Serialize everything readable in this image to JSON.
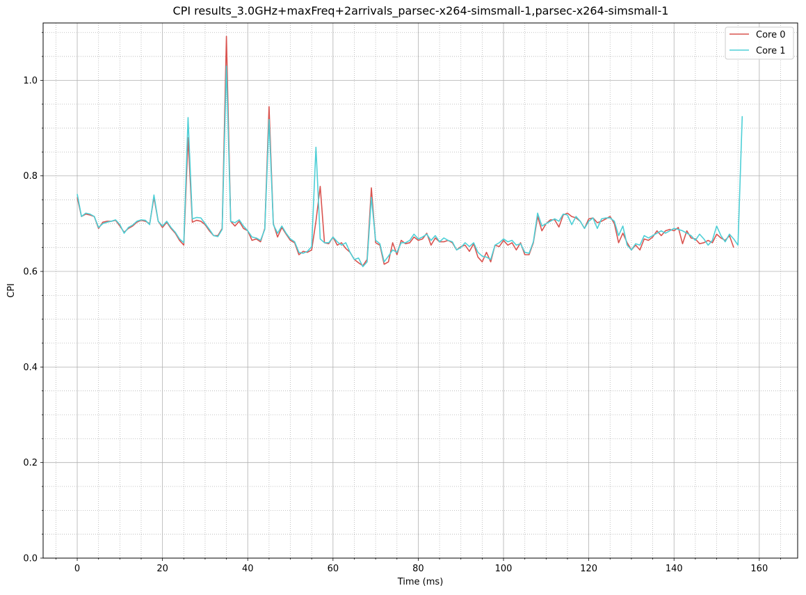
{
  "chart_data": {
    "type": "line",
    "title": "CPI results_3.0GHz+maxFreq+2arrivals_parsec-x264-simsmall-1,parsec-x264-simsmall-1",
    "xlabel": "Time (ms)",
    "ylabel": "CPI",
    "xlim": [
      -8,
      169
    ],
    "ylim": [
      0.0,
      1.12
    ],
    "x_ticks": [
      0,
      20,
      40,
      60,
      80,
      100,
      120,
      140,
      160
    ],
    "x_tick_labels": [
      "0",
      "20",
      "40",
      "60",
      "80",
      "100",
      "120",
      "140",
      "160"
    ],
    "x_minor_step": 5,
    "y_ticks": [
      0.0,
      0.2,
      0.4,
      0.6,
      0.8,
      1.0
    ],
    "y_tick_labels": [
      "0.0",
      "0.2",
      "0.4",
      "0.6",
      "0.8",
      "1.0"
    ],
    "y_minor_step": 0.05,
    "grid": true,
    "legend_position": "top-right",
    "series": [
      {
        "name": "Core 0",
        "color": "#d9534f",
        "x_start": 0,
        "x_step": 1,
        "values": [
          0.755,
          0.715,
          0.72,
          0.718,
          0.715,
          0.69,
          0.703,
          0.705,
          0.705,
          0.707,
          0.695,
          0.682,
          0.69,
          0.695,
          0.703,
          0.707,
          0.705,
          0.7,
          0.755,
          0.705,
          0.692,
          0.703,
          0.69,
          0.68,
          0.665,
          0.655,
          0.88,
          0.703,
          0.707,
          0.705,
          0.698,
          0.685,
          0.675,
          0.675,
          0.69,
          1.092,
          0.705,
          0.695,
          0.705,
          0.69,
          0.685,
          0.665,
          0.668,
          0.662,
          0.69,
          0.945,
          0.7,
          0.672,
          0.692,
          0.678,
          0.665,
          0.66,
          0.635,
          0.642,
          0.64,
          0.645,
          0.705,
          0.778,
          0.66,
          0.658,
          0.672,
          0.655,
          0.66,
          0.648,
          0.64,
          0.625,
          0.618,
          0.612,
          0.625,
          0.775,
          0.66,
          0.655,
          0.615,
          0.62,
          0.66,
          0.635,
          0.665,
          0.658,
          0.66,
          0.672,
          0.665,
          0.668,
          0.68,
          0.655,
          0.67,
          0.662,
          0.662,
          0.665,
          0.66,
          0.645,
          0.652,
          0.655,
          0.642,
          0.658,
          0.63,
          0.62,
          0.64,
          0.62,
          0.655,
          0.652,
          0.665,
          0.655,
          0.66,
          0.645,
          0.66,
          0.635,
          0.635,
          0.66,
          0.715,
          0.685,
          0.7,
          0.708,
          0.708,
          0.693,
          0.718,
          0.722,
          0.715,
          0.712,
          0.705,
          0.69,
          0.71,
          0.712,
          0.702,
          0.705,
          0.71,
          0.715,
          0.7,
          0.66,
          0.68,
          0.66,
          0.645,
          0.655,
          0.645,
          0.668,
          0.665,
          0.672,
          0.685,
          0.675,
          0.685,
          0.688,
          0.685,
          0.692,
          0.658,
          0.685,
          0.67,
          0.668,
          0.658,
          0.66,
          0.665,
          0.66,
          0.678,
          0.67,
          0.665,
          0.675,
          0.65
        ]
      },
      {
        "name": "Core 1",
        "color": "#4dcfd6",
        "x_start": 0,
        "x_step": 1,
        "values": [
          0.762,
          0.715,
          0.722,
          0.72,
          0.715,
          0.692,
          0.7,
          0.703,
          0.705,
          0.708,
          0.698,
          0.68,
          0.692,
          0.697,
          0.705,
          0.708,
          0.707,
          0.698,
          0.76,
          0.705,
          0.695,
          0.705,
          0.692,
          0.682,
          0.668,
          0.66,
          0.922,
          0.71,
          0.713,
          0.712,
          0.7,
          0.688,
          0.675,
          0.673,
          0.688,
          1.03,
          0.705,
          0.702,
          0.708,
          0.695,
          0.685,
          0.672,
          0.67,
          0.665,
          0.688,
          0.918,
          0.698,
          0.68,
          0.695,
          0.68,
          0.668,
          0.662,
          0.64,
          0.638,
          0.642,
          0.652,
          0.86,
          0.668,
          0.66,
          0.66,
          0.672,
          0.662,
          0.655,
          0.66,
          0.64,
          0.625,
          0.628,
          0.61,
          0.62,
          0.755,
          0.665,
          0.658,
          0.62,
          0.632,
          0.645,
          0.64,
          0.66,
          0.66,
          0.665,
          0.678,
          0.668,
          0.672,
          0.678,
          0.665,
          0.675,
          0.662,
          0.67,
          0.665,
          0.662,
          0.645,
          0.65,
          0.66,
          0.652,
          0.66,
          0.64,
          0.632,
          0.63,
          0.625,
          0.655,
          0.66,
          0.668,
          0.662,
          0.665,
          0.655,
          0.658,
          0.64,
          0.638,
          0.662,
          0.722,
          0.695,
          0.7,
          0.705,
          0.71,
          0.705,
          0.72,
          0.718,
          0.698,
          0.715,
          0.705,
          0.69,
          0.705,
          0.712,
          0.69,
          0.71,
          0.712,
          0.712,
          0.705,
          0.675,
          0.695,
          0.655,
          0.645,
          0.658,
          0.655,
          0.675,
          0.67,
          0.675,
          0.68,
          0.685,
          0.68,
          0.685,
          0.69,
          0.688,
          0.685,
          0.68,
          0.675,
          0.665,
          0.678,
          0.668,
          0.655,
          0.665,
          0.695,
          0.675,
          0.662,
          0.678,
          0.668,
          0.655,
          0.925
        ]
      }
    ]
  }
}
